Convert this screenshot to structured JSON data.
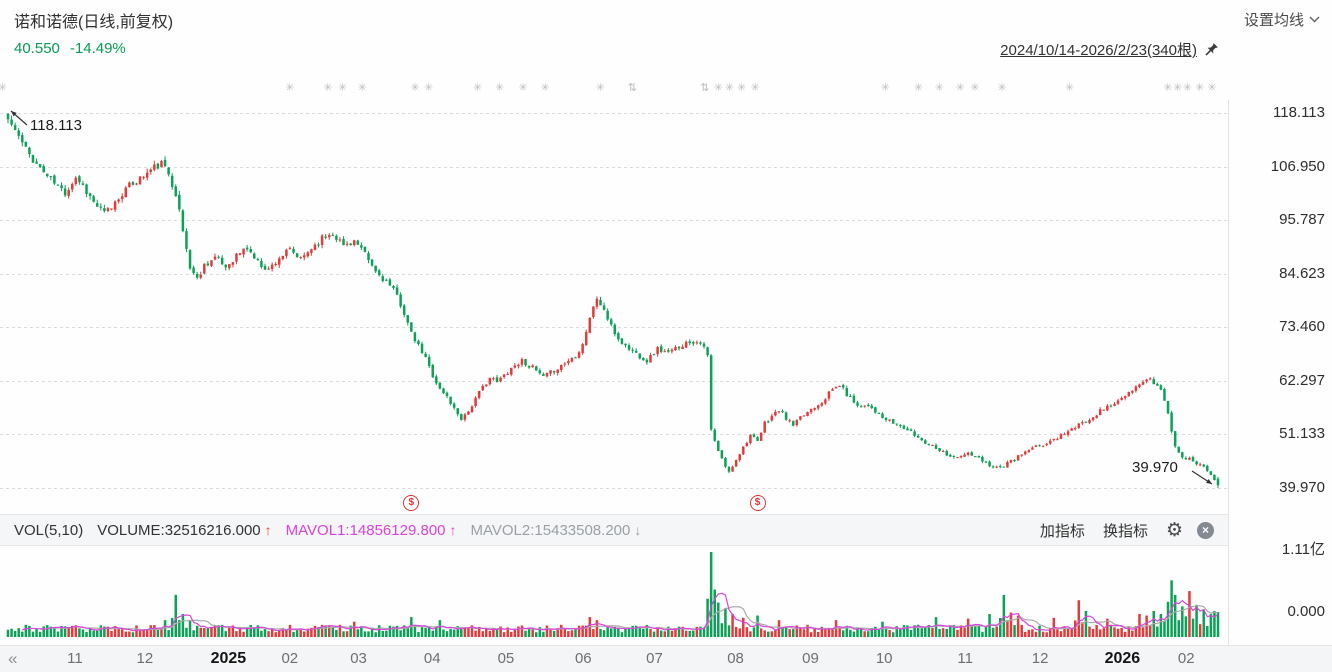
{
  "header": {
    "title": "诺和诺德(日线,前复权)",
    "price": "40.550",
    "change": "-14.49%",
    "ma_settings_label": "设置均线",
    "range_label": "2024/10/14-2026/2/23(340根)"
  },
  "annotations": {
    "high": "118.113",
    "low": "39.970"
  },
  "price_axis": [
    "118.113",
    "106.950",
    "95.787",
    "84.623",
    "73.460",
    "62.297",
    "51.133",
    "39.970"
  ],
  "volume_axis": {
    "max": "1.11亿",
    "min": "0.000"
  },
  "volume_header": {
    "vol_label": "VOL(5,10)",
    "volume_label": "VOLUME:32516216.000",
    "volume_arrow": "↑",
    "mavol1_label": "MAVOL1:14856129.800",
    "mavol1_arrow": "↑",
    "mavol2_label": "MAVOL2:15433508.200",
    "mavol2_arrow": "↓",
    "add_indicator": "加指标",
    "switch_indicator": "换指标"
  },
  "icons": {
    "gear": "⚙",
    "close": "×",
    "scroll_left": "«",
    "dividend": "$"
  },
  "colors": {
    "up": "#e23b3b",
    "down": "#0ba157",
    "quote_green": "#089d52",
    "mavol1": "#d944d9",
    "mavol2": "#ababab",
    "marker_red": "#e03131"
  },
  "chart_data": {
    "type": "candlestick",
    "title": "诺和诺德 日线 前复权",
    "candle_count": 340,
    "price_min": 39.97,
    "price_max": 118.113,
    "volume_max": 111000000,
    "volume_base_min": 6000000,
    "volume_base_max": 16000000,
    "seed": 11,
    "colors": {
      "up": "#e23b3b",
      "down": "#0ba157",
      "mavol1": "#d944d9",
      "mavol2": "#ababab"
    },
    "first_candle": {
      "open": 117.9,
      "high": 118.113,
      "low": 116.0,
      "close": 116.8
    },
    "last_candle": {
      "open": 41.9,
      "high": 42.3,
      "low": 39.97,
      "close": 40.55
    },
    "price_anchors": [
      [
        0,
        116.8
      ],
      [
        2,
        114.5
      ],
      [
        5,
        110.5
      ],
      [
        8,
        107.5
      ],
      [
        11,
        105.0
      ],
      [
        14,
        102.8
      ],
      [
        16,
        101.5
      ],
      [
        19,
        104.8
      ],
      [
        21,
        103.0
      ],
      [
        24,
        99.5
      ],
      [
        27,
        97.2
      ],
      [
        29,
        98.5
      ],
      [
        32,
        101.5
      ],
      [
        35,
        103.5
      ],
      [
        38,
        105.0
      ],
      [
        41,
        106.8
      ],
      [
        43,
        107.5
      ],
      [
        45,
        105.5
      ],
      [
        47,
        101.5
      ],
      [
        49,
        93.5
      ],
      [
        51,
        86.0
      ],
      [
        53,
        83.5
      ],
      [
        55,
        86.5
      ],
      [
        58,
        88.0
      ],
      [
        61,
        86.0
      ],
      [
        64,
        88.5
      ],
      [
        67,
        90.0
      ],
      [
        70,
        87.0
      ],
      [
        73,
        85.5
      ],
      [
        76,
        88.0
      ],
      [
        79,
        89.5
      ],
      [
        82,
        87.5
      ],
      [
        85,
        90.0
      ],
      [
        88,
        92.0
      ],
      [
        91,
        93.2
      ],
      [
        94,
        90.5
      ],
      [
        97,
        91.5
      ],
      [
        100,
        88.5
      ],
      [
        103,
        85.0
      ],
      [
        106,
        83.0
      ],
      [
        109,
        80.0
      ],
      [
        111,
        76.5
      ],
      [
        113,
        72.0
      ],
      [
        115,
        69.5
      ],
      [
        117,
        67.0
      ],
      [
        119,
        63.5
      ],
      [
        121,
        60.5
      ],
      [
        123,
        59.0
      ],
      [
        125,
        56.5
      ],
      [
        127,
        54.5
      ],
      [
        129,
        56.0
      ],
      [
        131,
        58.5
      ],
      [
        133,
        61.0
      ],
      [
        135,
        63.0
      ],
      [
        137,
        62.0
      ],
      [
        139,
        63.5
      ],
      [
        141,
        65.0
      ],
      [
        144,
        66.5
      ],
      [
        147,
        65.0
      ],
      [
        150,
        63.0
      ],
      [
        153,
        64.5
      ],
      [
        156,
        66.0
      ],
      [
        159,
        67.5
      ],
      [
        161,
        70.0
      ],
      [
        163,
        75.5
      ],
      [
        165,
        79.5
      ],
      [
        167,
        77.0
      ],
      [
        169,
        73.5
      ],
      [
        171,
        71.0
      ],
      [
        173,
        69.5
      ],
      [
        176,
        68.0
      ],
      [
        179,
        66.5
      ],
      [
        182,
        69.0
      ],
      [
        185,
        68.0
      ],
      [
        188,
        69.5
      ],
      [
        191,
        70.5
      ],
      [
        194,
        70.5
      ],
      [
        196,
        67.5
      ],
      [
        197,
        52.0
      ],
      [
        199,
        47.5
      ],
      [
        201,
        44.5
      ],
      [
        202,
        43.2
      ],
      [
        204,
        46.0
      ],
      [
        206,
        48.5
      ],
      [
        208,
        51.0
      ],
      [
        210,
        49.5
      ],
      [
        212,
        53.5
      ],
      [
        214,
        55.0
      ],
      [
        216,
        56.2
      ],
      [
        218,
        54.5
      ],
      [
        220,
        53.0
      ],
      [
        222,
        54.5
      ],
      [
        225,
        56.5
      ],
      [
        228,
        58.0
      ],
      [
        231,
        60.5
      ],
      [
        233,
        61.5
      ],
      [
        235,
        59.5
      ],
      [
        237,
        58.0
      ],
      [
        239,
        57.0
      ],
      [
        241,
        57.5
      ],
      [
        243,
        56.0
      ],
      [
        245,
        54.5
      ],
      [
        248,
        53.5
      ],
      [
        251,
        52.5
      ],
      [
        254,
        51.0
      ],
      [
        257,
        49.5
      ],
      [
        260,
        48.5
      ],
      [
        263,
        47.0
      ],
      [
        266,
        46.2
      ],
      [
        269,
        47.2
      ],
      [
        272,
        46.0
      ],
      [
        275,
        44.8
      ],
      [
        278,
        44.2
      ],
      [
        281,
        45.5
      ],
      [
        284,
        47.0
      ],
      [
        287,
        48.2
      ],
      [
        290,
        49.0
      ],
      [
        293,
        50.0
      ],
      [
        296,
        51.5
      ],
      [
        299,
        52.5
      ],
      [
        302,
        54.0
      ],
      [
        305,
        55.5
      ],
      [
        308,
        57.0
      ],
      [
        311,
        58.0
      ],
      [
        314,
        59.5
      ],
      [
        317,
        61.5
      ],
      [
        319,
        62.8
      ],
      [
        321,
        62.0
      ],
      [
        323,
        60.5
      ],
      [
        325,
        55.5
      ],
      [
        327,
        48.5
      ],
      [
        329,
        46.5
      ],
      [
        331,
        46.0
      ],
      [
        333,
        45.2
      ],
      [
        335,
        44.5
      ],
      [
        337,
        43.0
      ],
      [
        338,
        41.9
      ],
      [
        339,
        40.55
      ]
    ],
    "volume_spikes": [
      [
        44,
        22000000
      ],
      [
        47,
        55000000
      ],
      [
        49,
        30000000
      ],
      [
        51,
        22000000
      ],
      [
        97,
        20000000
      ],
      [
        113,
        26000000
      ],
      [
        121,
        22000000
      ],
      [
        163,
        26000000
      ],
      [
        165,
        22000000
      ],
      [
        197,
        111000000
      ],
      [
        198,
        62000000
      ],
      [
        199,
        45000000
      ],
      [
        201,
        38000000
      ],
      [
        203,
        30000000
      ],
      [
        206,
        25000000
      ],
      [
        210,
        28000000
      ],
      [
        216,
        22000000
      ],
      [
        232,
        22000000
      ],
      [
        245,
        20000000
      ],
      [
        260,
        26000000
      ],
      [
        269,
        24000000
      ],
      [
        275,
        30000000
      ],
      [
        279,
        55000000
      ],
      [
        281,
        32000000
      ],
      [
        283,
        28000000
      ],
      [
        293,
        25000000
      ],
      [
        300,
        48000000
      ],
      [
        302,
        34000000
      ],
      [
        308,
        24000000
      ],
      [
        317,
        30000000
      ],
      [
        319,
        28000000
      ],
      [
        321,
        34000000
      ],
      [
        323,
        30000000
      ],
      [
        325,
        46000000
      ],
      [
        326,
        74000000
      ],
      [
        327,
        55000000
      ],
      [
        329,
        40000000
      ],
      [
        331,
        60000000
      ],
      [
        333,
        42000000
      ],
      [
        335,
        36000000
      ],
      [
        337,
        30000000
      ],
      [
        338,
        34000000
      ],
      [
        339,
        32516216
      ]
    ],
    "dividend_markers": [
      {
        "index": 113
      },
      {
        "index": 210
      }
    ],
    "x_ticks": [
      {
        "label": "11",
        "f": 0.061
      },
      {
        "label": "12",
        "f": 0.118
      },
      {
        "label": "2025",
        "f": 0.186,
        "year": true
      },
      {
        "label": "02",
        "f": 0.236
      },
      {
        "label": "03",
        "f": 0.292
      },
      {
        "label": "04",
        "f": 0.352
      },
      {
        "label": "05",
        "f": 0.412
      },
      {
        "label": "06",
        "f": 0.475
      },
      {
        "label": "07",
        "f": 0.533
      },
      {
        "label": "08",
        "f": 0.599
      },
      {
        "label": "09",
        "f": 0.66
      },
      {
        "label": "10",
        "f": 0.72
      },
      {
        "label": "11",
        "f": 0.786
      },
      {
        "label": "12",
        "f": 0.847
      },
      {
        "label": "2026",
        "f": 0.914,
        "year": true
      },
      {
        "label": "02",
        "f": 0.966
      }
    ],
    "event_markers": [
      {
        "f": 0.002,
        "g": "✳"
      },
      {
        "f": 0.236,
        "g": "✳"
      },
      {
        "f": 0.267,
        "g": "✳"
      },
      {
        "f": 0.279,
        "g": "✳"
      },
      {
        "f": 0.295,
        "g": "✳"
      },
      {
        "f": 0.338,
        "g": "✳"
      },
      {
        "f": 0.349,
        "g": "✳"
      },
      {
        "f": 0.389,
        "g": "✳"
      },
      {
        "f": 0.407,
        "g": "✳"
      },
      {
        "f": 0.426,
        "g": "✳"
      },
      {
        "f": 0.444,
        "g": "✳"
      },
      {
        "f": 0.489,
        "g": "✳"
      },
      {
        "f": 0.515,
        "g": "⇅"
      },
      {
        "f": 0.574,
        "g": "⇅"
      },
      {
        "f": 0.585,
        "g": "✳"
      },
      {
        "f": 0.594,
        "g": "✳"
      },
      {
        "f": 0.604,
        "g": "✳"
      },
      {
        "f": 0.615,
        "g": "✳"
      },
      {
        "f": 0.721,
        "g": "✳"
      },
      {
        "f": 0.748,
        "g": "✳"
      },
      {
        "f": 0.765,
        "g": "✳"
      },
      {
        "f": 0.782,
        "g": "✳"
      },
      {
        "f": 0.794,
        "g": "✳"
      },
      {
        "f": 0.816,
        "g": "✳"
      },
      {
        "f": 0.871,
        "g": "✳"
      },
      {
        "f": 0.951,
        "g": "✳"
      },
      {
        "f": 0.959,
        "g": "✳"
      },
      {
        "f": 0.967,
        "g": "✳"
      },
      {
        "f": 0.977,
        "g": "✳"
      },
      {
        "f": 0.987,
        "g": "✳"
      }
    ]
  }
}
